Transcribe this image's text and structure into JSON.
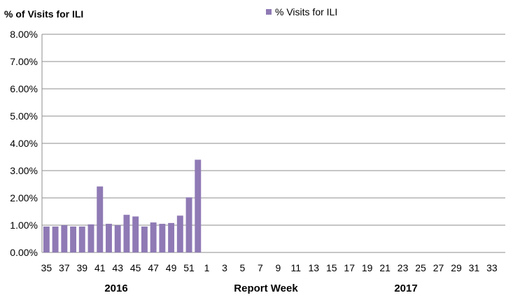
{
  "chart_data": {
    "type": "bar",
    "ylabel": "% of Visits for ILI",
    "xlabel": "Report Week",
    "ylim": [
      0,
      8
    ],
    "yticks": [
      "0.00%",
      "1.00%",
      "2.00%",
      "3.00%",
      "4.00%",
      "5.00%",
      "6.00%",
      "7.00%",
      "8.00%"
    ],
    "grid": true,
    "legend_position": "top",
    "groups": [
      "2016",
      "2017"
    ],
    "categories": [
      "35",
      "36",
      "37",
      "38",
      "39",
      "40",
      "41",
      "42",
      "43",
      "44",
      "45",
      "46",
      "47",
      "48",
      "49",
      "50",
      "51",
      "52",
      "1",
      "2",
      "3",
      "4",
      "5",
      "6",
      "7",
      "8",
      "9",
      "10",
      "11",
      "12",
      "13",
      "14",
      "15",
      "16",
      "17",
      "18",
      "19",
      "20",
      "21",
      "22",
      "23",
      "24",
      "25",
      "26",
      "27",
      "28",
      "29",
      "30",
      "31",
      "32",
      "33",
      "34"
    ],
    "series": [
      {
        "name": "% Visits for ILI",
        "color": "#8f7ab5",
        "values": [
          0.95,
          0.95,
          1.0,
          0.95,
          0.95,
          1.03,
          2.42,
          1.05,
          1.0,
          1.38,
          1.32,
          0.95,
          1.1,
          1.05,
          1.08,
          1.35,
          2.02,
          3.4,
          null,
          null,
          null,
          null,
          null,
          null,
          null,
          null,
          null,
          null,
          null,
          null,
          null,
          null,
          null,
          null,
          null,
          null,
          null,
          null,
          null,
          null,
          null,
          null,
          null,
          null,
          null,
          null,
          null,
          null,
          null,
          null,
          null,
          null
        ]
      }
    ]
  }
}
